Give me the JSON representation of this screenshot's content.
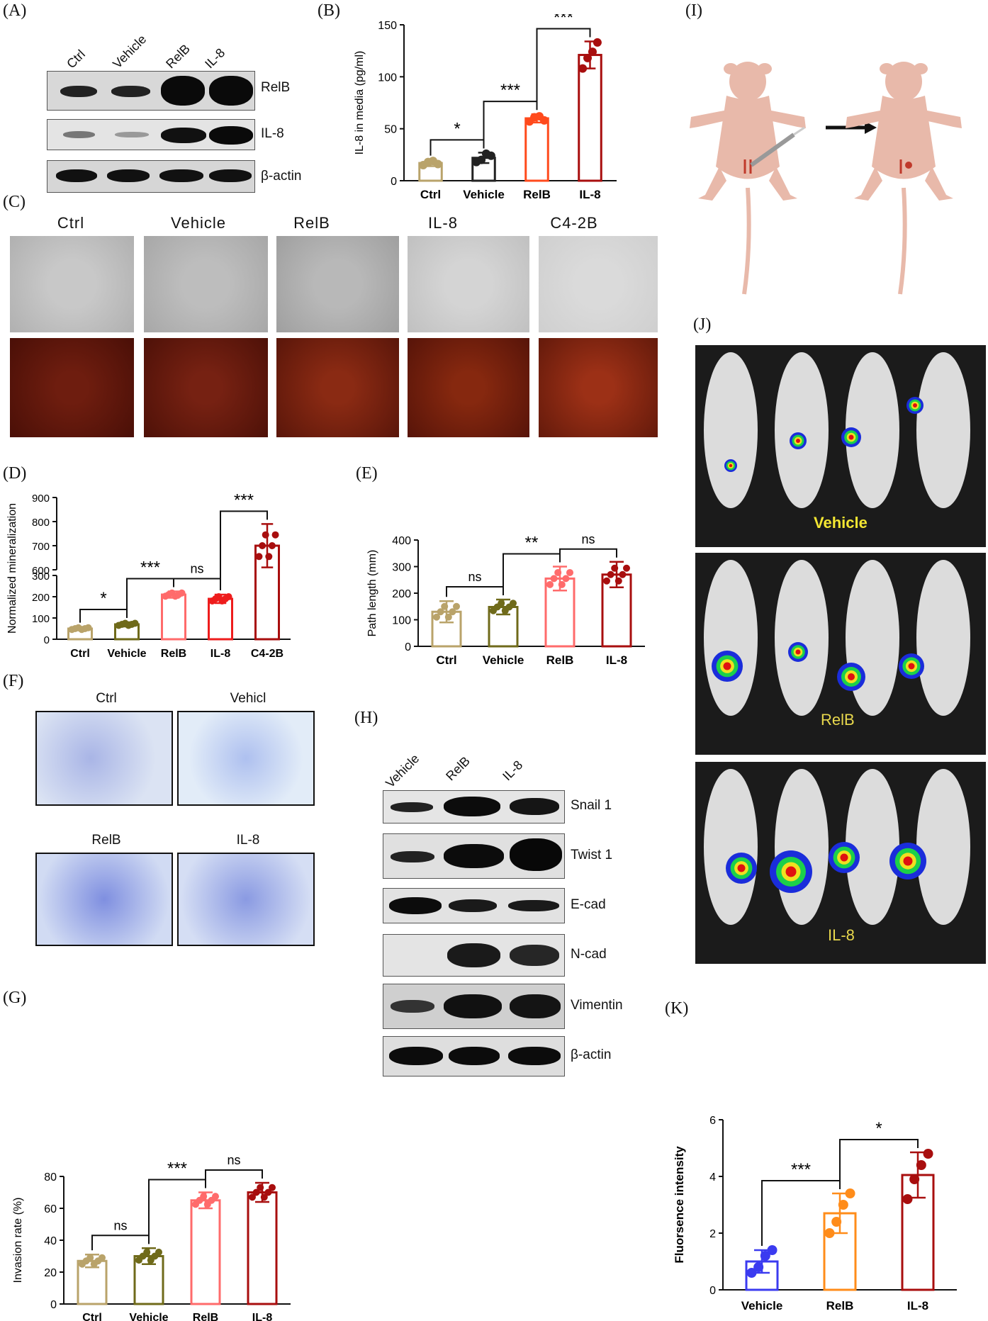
{
  "panels": {
    "A": "(A)",
    "B": "(B)",
    "C": "(C)",
    "D": "(D)",
    "E": "(E)",
    "F": "(F)",
    "G": "(G)",
    "H": "(H)",
    "I": "(I)",
    "J": "(J)",
    "K": "(K)"
  },
  "panelA": {
    "lanes": [
      "Ctrl",
      "Vehicle",
      "RelB",
      "IL-8"
    ],
    "bands": [
      "RelB",
      "IL-8",
      "β-actin"
    ]
  },
  "panelC": {
    "lanes": [
      "Ctrl",
      "Vehicle",
      "RelB",
      "IL-8",
      "C4-2B"
    ]
  },
  "panelF": {
    "tiles": [
      "Ctrl",
      "Vehicl",
      "RelB",
      "IL-8"
    ]
  },
  "panelH": {
    "lanes": [
      "Vehicle",
      "RelB",
      "IL-8"
    ],
    "bands": [
      "Snail 1",
      "Twist 1",
      "E-cad",
      "N-cad",
      "Vimentin",
      "β-actin"
    ]
  },
  "panelJ": {
    "groups": [
      "Vehicle",
      "RelB",
      "IL-8"
    ]
  },
  "chart_data": [
    {
      "panel": "B",
      "type": "bar",
      "categories": [
        "Ctrl",
        "Vehicle",
        "RelB",
        "IL-8"
      ],
      "values": [
        17,
        22,
        60,
        121
      ],
      "errors": [
        3,
        5,
        4,
        13
      ],
      "ylabel": "IL-8 in media (pg/ml)",
      "ylim": [
        0,
        150
      ],
      "yticks": [
        0,
        50,
        100,
        150
      ],
      "colors": [
        "#b9a36a",
        "#222222",
        "#ff4a1c",
        "#a80e0e"
      ],
      "points": [
        [
          15,
          18,
          19,
          16
        ],
        [
          18,
          20,
          26,
          24
        ],
        [
          57,
          61,
          62,
          58
        ],
        [
          108,
          118,
          124,
          133
        ]
      ],
      "comparisons": [
        {
          "from": 0,
          "to": 1,
          "label": "*"
        },
        {
          "from": 1,
          "to": 2,
          "label": "***"
        },
        {
          "from": 2,
          "to": 3,
          "label": "***"
        }
      ]
    },
    {
      "panel": "D",
      "type": "bar",
      "categories": [
        "Ctrl",
        "Vehicle",
        "RelB",
        "IL-8",
        "C4-2B"
      ],
      "values": [
        50,
        70,
        210,
        190,
        700
      ],
      "errors": [
        8,
        10,
        15,
        20,
        90
      ],
      "ylabel": "Normalized mineralization",
      "ylim": [
        0,
        900
      ],
      "yticks": [
        0,
        100,
        200,
        300,
        600,
        700,
        800,
        900
      ],
      "axis_break": [
        300,
        600
      ],
      "colors": [
        "#b9a36a",
        "#6f6a1a",
        "#ff6b6b",
        "#ee1c1c",
        "#a80e0e"
      ],
      "comparisons": [
        {
          "from": 0,
          "to": 1,
          "label": "*"
        },
        {
          "from": 1,
          "to": 2,
          "label": "***"
        },
        {
          "from": 2,
          "to": 3,
          "label": "ns"
        },
        {
          "from": 3,
          "to": 4,
          "label": "***"
        }
      ]
    },
    {
      "panel": "E",
      "type": "bar",
      "categories": [
        "Ctrl",
        "Vehicle",
        "RelB",
        "IL-8"
      ],
      "values": [
        130,
        148,
        255,
        270
      ],
      "errors": [
        40,
        28,
        45,
        48
      ],
      "ylabel": "Path length (mm)",
      "ylim": [
        0,
        400
      ],
      "yticks": [
        0,
        100,
        200,
        300,
        400
      ],
      "colors": [
        "#b9a36a",
        "#6f6a1a",
        "#ff6b6b",
        "#a80e0e"
      ],
      "comparisons": [
        {
          "from": 0,
          "to": 1,
          "label": "ns"
        },
        {
          "from": 1,
          "to": 2,
          "label": "**"
        },
        {
          "from": 2,
          "to": 3,
          "label": "ns"
        }
      ]
    },
    {
      "panel": "G",
      "type": "bar",
      "categories": [
        "Ctrl",
        "Vehicle",
        "RelB",
        "IL-8"
      ],
      "values": [
        27,
        30,
        65,
        70
      ],
      "errors": [
        4,
        5,
        5,
        6
      ],
      "ylabel": "Invasion rate (%)",
      "ylim": [
        0,
        80
      ],
      "yticks": [
        0,
        20,
        40,
        60,
        80
      ],
      "colors": [
        "#b9a36a",
        "#6f6a1a",
        "#ff6b6b",
        "#a80e0e"
      ],
      "comparisons": [
        {
          "from": 0,
          "to": 1,
          "label": "ns"
        },
        {
          "from": 1,
          "to": 2,
          "label": "***"
        },
        {
          "from": 2,
          "to": 3,
          "label": "ns"
        }
      ]
    },
    {
      "panel": "K",
      "type": "bar",
      "categories": [
        "Vehicle",
        "RelB",
        "IL-8"
      ],
      "values": [
        1.0,
        2.7,
        4.05
      ],
      "errors": [
        0.4,
        0.7,
        0.8
      ],
      "ylabel": "Fluorsence intensity",
      "ylim": [
        0,
        6
      ],
      "yticks": [
        0,
        2,
        4,
        6
      ],
      "colors": [
        "#3b3bf0",
        "#ff8c1a",
        "#a80e0e"
      ],
      "points": [
        [
          0.6,
          0.8,
          1.2,
          1.4
        ],
        [
          2.0,
          2.4,
          3.0,
          3.4
        ],
        [
          3.2,
          3.9,
          4.4,
          4.8
        ]
      ],
      "comparisons": [
        {
          "from": 0,
          "to": 1,
          "label": "***"
        },
        {
          "from": 1,
          "to": 2,
          "label": "*"
        }
      ]
    }
  ]
}
